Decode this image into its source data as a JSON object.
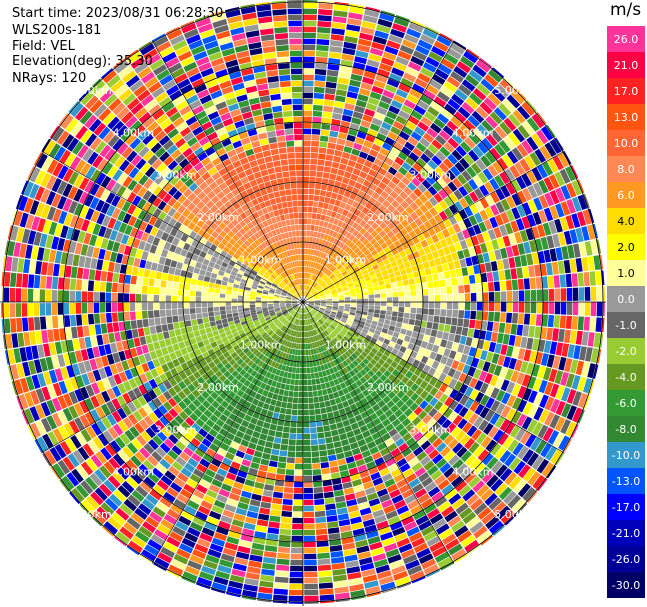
{
  "header": {
    "start_time": "Start time: 2023/08/31 06:28:30",
    "device": "WLS200s-181",
    "field": "Field: VEL",
    "elevation": "Elevation(deg): 35.30",
    "nrays": "NRays: 120"
  },
  "colorbar": {
    "unit": "m/s",
    "ticks": [
      "26.0",
      "21.0",
      "17.0",
      "13.0",
      "10.0",
      "8.0",
      "6.0",
      "4.0",
      "2.0",
      "1.0",
      "0.0",
      "-1.0",
      "-2.0",
      "-4.0",
      "-6.0",
      "-8.0",
      "-10.0",
      "-13.0",
      "-17.0",
      "-21.0",
      "-26.0",
      "-30.0"
    ],
    "colors": [
      "#ff3399",
      "#ff0044",
      "#ff2222",
      "#ff5511",
      "#ff6633",
      "#ff8855",
      "#ff9922",
      "#ffdd00",
      "#ffff00",
      "#ffff99",
      "#999999",
      "#666666",
      "#99cc33",
      "#669922",
      "#339933",
      "#338833",
      "#3399cc",
      "#0055ff",
      "#0000ff",
      "#0000bb",
      "#000099",
      "#000066"
    ]
  },
  "chart_data": {
    "type": "ppi",
    "field": "VEL",
    "units": "m/s",
    "n_rays": 120,
    "elevation_deg": 35.3,
    "value_range": [
      -30.0,
      26.0
    ],
    "range_ring_labels": [
      "1.00km",
      "2.00km",
      "3.00km",
      "4.00km",
      "5.00km"
    ],
    "structure": [
      {
        "region": "north-center",
        "approx_velocity": 8.0
      },
      {
        "region": "north-outer",
        "approx_velocity": 3.0
      },
      {
        "region": "south-center",
        "approx_velocity": -6.0
      },
      {
        "region": "south-middle",
        "approx_velocity": -3.0
      },
      {
        "region": "west-to-east band",
        "approx_velocity": 0.0
      },
      {
        "region": "outer ring",
        "approx_velocity": "noise"
      }
    ]
  }
}
